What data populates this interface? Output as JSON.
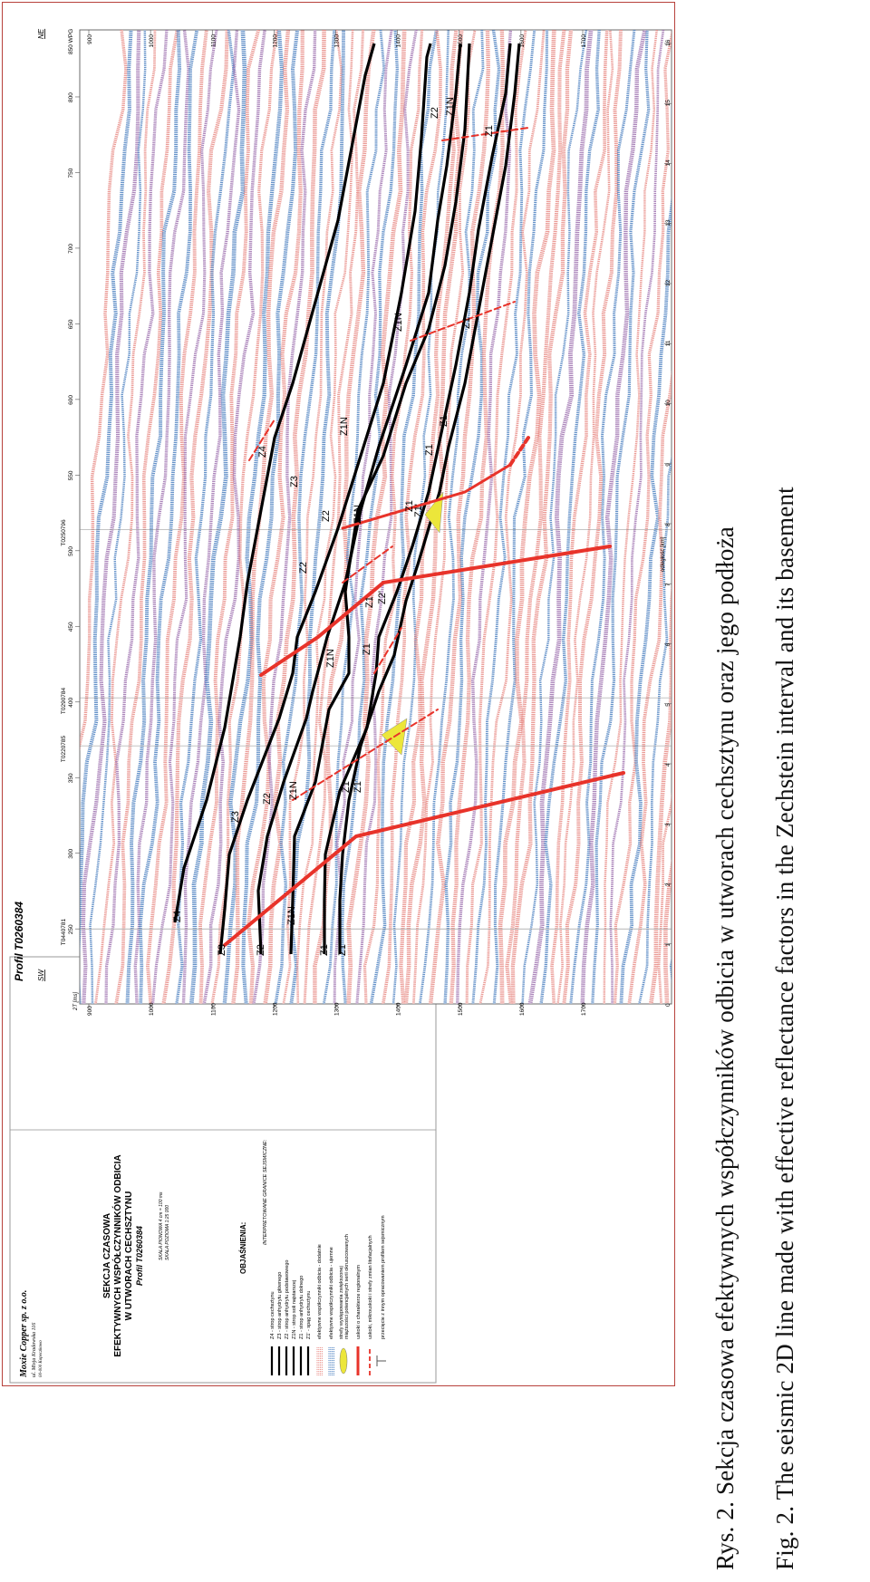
{
  "figure": {
    "profile_title": "Profil T0260384",
    "dir_left": "SW",
    "dir_right": "NE",
    "x_axis_label": "odległość [km]",
    "y_axis_label": "2T [ms]",
    "km_ticks": [
      "0",
      "1",
      "2",
      "3",
      "4",
      "5",
      "6",
      "7",
      "8",
      "9",
      "10",
      "11",
      "12",
      "13",
      "14",
      "15",
      "16"
    ],
    "ms_ticks": [
      "900",
      "1000",
      "1100",
      "1200",
      "1300",
      "1400",
      "1500",
      "1600",
      "1700"
    ],
    "ms_ticks_right": [
      "900",
      "1000",
      "1100",
      "1200",
      "1300",
      "1400",
      "1500",
      "1600",
      "1700"
    ],
    "cdp_ticks": [
      "250",
      "300",
      "350",
      "400",
      "450",
      "500",
      "550",
      "600",
      "650",
      "700",
      "750",
      "800"
    ],
    "cdp_last": "850 WPG",
    "crossing_lines": [
      "T0440781",
      "T0220785",
      "T0290784",
      "T0250796"
    ],
    "horizon_labels": {
      "z4": "Z4",
      "z3": "Z3",
      "z2": "Z2",
      "z1n": "Z1N",
      "z1": "Z1",
      "z1p": "Z1'",
      "z2p": "Z2'"
    }
  },
  "legend": {
    "company": "Moxie Copper sp. z o.o.",
    "company_addr1": "ul. Misja Kradowska 116",
    "company_addr2": "00-000 Kopeczkowo",
    "title_line1": "SEKCJA CZASOWA",
    "title_line2": "EFEKTYWNYCH WSPÓŁCZYNNIKÓW ODBICIA",
    "title_line3": "W UTWORACH CECHSZTYNU",
    "title_line4": "Profil T0260384",
    "scale_v": "SKALA PIONOWA 4 cm = 100 ms",
    "scale_h": "SKALA POZIOMA 1:25 000",
    "objasnienia": "OBJAŚNIENIA:",
    "subhead": "INTERPRETOWANE GRANICE SEJSMICZNE:",
    "items": [
      "Z4 - strop cechsztynu",
      "Z3 - strop anhydrytu głównego",
      "Z2 - strop anhydrytu podstawowego",
      "Z1N - strop soli najstarszej",
      "Z1 - strop anhydrytu dolnego",
      "Z1' - spąg cechsztynu",
      "efektywne współczynniki odbicia - dodatnie",
      "efektywne współczynniki odbicia - ujemne",
      "strefy występowania zwiększonej",
      "miąższości potencjalnych serii okruszcowanych",
      "uskoki o charakterze regionalnym",
      "uskoki, mikrouskoki i strefy zmian litofacjalnych",
      "przecięcie z innym opracowaniem profilem sejsmicznym"
    ]
  },
  "captions": {
    "pl": "Rys.  2.  Sekcja czasowa efektywnych współczynników odbicia w utworach cechsztynu oraz jego podłoża",
    "en": "Fig.  2.   The seismic 2D line made with effective reflectance factors in the Zechstein interval and its basement"
  },
  "colors": {
    "border": "#b7423c",
    "positive": "#e88a84",
    "negative": "#4a7fc0",
    "purple": "#9c6fae",
    "horizon": "#000000",
    "fault": "#e8332a",
    "mineralized": "#ece63a"
  }
}
